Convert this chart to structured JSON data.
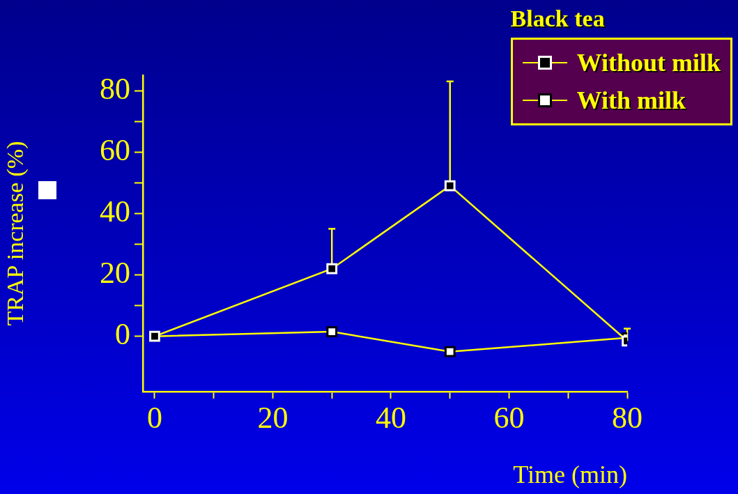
{
  "chart_data": {
    "type": "line",
    "xlabel": "Time (min)",
    "ylabel": "TRAP increase (%)",
    "legend_title": "Black tea",
    "x": [
      0,
      30,
      50,
      80
    ],
    "series": [
      {
        "name": "Without milk",
        "color": "#000000",
        "values": [
          0,
          22,
          49,
          -1.5
        ],
        "errors": [
          null,
          [
            22,
            35
          ],
          [
            49,
            83
          ],
          [
            -1.5,
            2.5
          ]
        ]
      },
      {
        "name": "With milk",
        "color": "#ffffff",
        "values": [
          0,
          1.5,
          -5,
          -0.5
        ]
      }
    ],
    "xlim": [
      -2,
      80
    ],
    "xticks": [
      0,
      {
        "value": 10,
        "label": null
      },
      20,
      {
        "value": 30,
        "label": null
      },
      40,
      {
        "value": 50,
        "label": null
      },
      60,
      {
        "value": 70,
        "label": null
      },
      80
    ],
    "ylim": [
      -18,
      85
    ],
    "yticks": [
      0,
      {
        "value": 10,
        "label": null
      },
      20,
      {
        "value": 30,
        "label": null
      },
      40,
      {
        "value": 50,
        "label": null
      },
      60,
      {
        "value": 70,
        "label": null
      },
      80
    ],
    "grid": false,
    "legend": "top right",
    "marker": "square",
    "line_style": "solid"
  }
}
